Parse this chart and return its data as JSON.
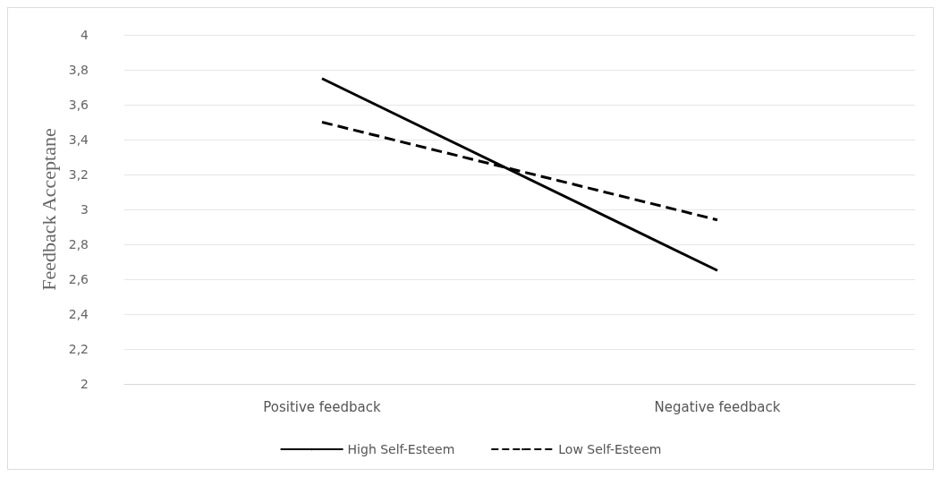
{
  "chart_data": {
    "type": "line",
    "ylabel": "Feedback Acceptane",
    "categories": [
      "Positive feedback",
      "Negative feedback"
    ],
    "series": [
      {
        "name": "High Self-Esteem",
        "color": "#000000",
        "values": [
          3.75,
          2.65
        ],
        "line_style": "solid"
      },
      {
        "name": "Low Self-Esteem",
        "color": "#000000",
        "values": [
          3.5,
          2.94
        ],
        "line_style": "dashed"
      }
    ],
    "ylim": [
      2,
      4
    ],
    "yticks": [
      2,
      {
        "value": 2.2,
        "label": "2,2"
      },
      {
        "value": 2.4,
        "label": "2,4"
      },
      {
        "value": 2.6,
        "label": "2,6"
      },
      {
        "value": 2.8,
        "label": "2,8"
      },
      3,
      {
        "value": 3.2,
        "label": "3,2"
      },
      {
        "value": 3.4,
        "label": "3,4"
      },
      {
        "value": 3.6,
        "label": "3,6"
      },
      {
        "value": 3.8,
        "label": "3,8"
      },
      4
    ],
    "grid": "y",
    "legend": "bottom",
    "marker": "none"
  }
}
